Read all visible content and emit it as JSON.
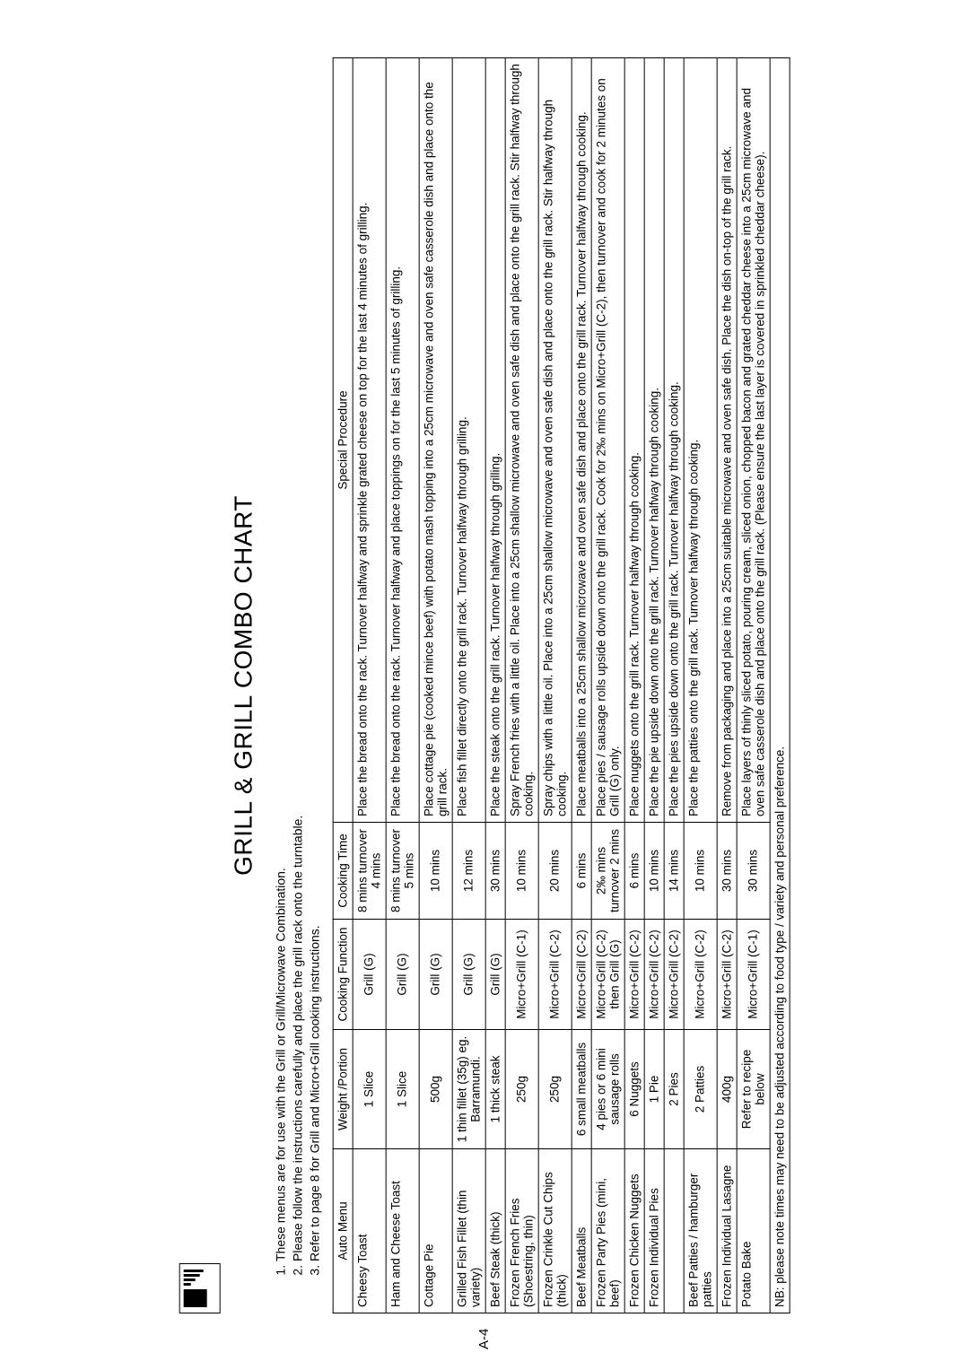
{
  "page_number": "A-4",
  "title": "GRILL & GRILL COMBO CHART",
  "instructions": [
    "These menus are for use with the Grill or Grill/Microwave Combination.",
    "Please follow the instructions carefully and place the grill rack onto the turntable.",
    "Refer to page 8 for Grill and Micro+Grill cooking instructions."
  ],
  "columns": [
    "Auto Menu",
    "Weight /Portion",
    "Cooking Function",
    "Cooking Time",
    "Special Procedure"
  ],
  "rows": [
    {
      "menu": "Cheesy Toast",
      "weight": "1 Slice",
      "function": "Grill (G)",
      "time": "8 mins turnover 4 mins",
      "procedure": "Place the bread onto the rack. Turnover halfway and sprinkle grated cheese on top for the last 4 minutes of grilling."
    },
    {
      "menu": "Ham and Cheese Toast",
      "weight": "1 Slice",
      "function": "Grill (G)",
      "time": "8 mins turnover 5 mins",
      "procedure": "Place the bread onto the rack. Turnover halfway and place toppings on for the last 5 minutes of grilling."
    },
    {
      "menu": "Cottage Pie",
      "weight": "500g",
      "function": "Grill (G)",
      "time": "10 mins",
      "procedure": "Place cottage pie (cooked mince beef) with potato mash topping into a 25cm microwave and oven safe casserole dish and place onto the grill rack."
    },
    {
      "menu": "Grilled Fish Fillet (thin variety)",
      "weight": "1 thin fillet (35g) eg. Barramundi.",
      "function": "Grill (G)",
      "time": "12 mins",
      "procedure": "Place fish fillet directly onto the grill rack. Turnover halfway through grilling."
    },
    {
      "menu": "Beef Steak (thick)",
      "weight": "1 thick steak",
      "function": "Grill (G)",
      "time": "30 mins",
      "procedure": "Place the steak onto the grill rack. Turnover halfway through grilling."
    },
    {
      "menu": "Frozen French Fries (Shoestring, thin)",
      "weight": "250g",
      "function": "Micro+Grill (C-1)",
      "time": "10 mins",
      "procedure": "Spray French fries with a little oil. Place into a 25cm shallow microwave and oven safe dish and place onto the grill rack. Stir halfway through cooking."
    },
    {
      "menu": "Frozen Crinkle Cut Chips (thick)",
      "weight": "250g",
      "function": "Micro+Grill (C-2)",
      "time": "20 mins",
      "procedure": "Spray chips with a little oil. Place into a 25cm shallow microwave and oven safe dish and place onto the grill rack. Stir halfway through cooking."
    },
    {
      "menu": "Beef Meatballs",
      "weight": "6 small meatballs",
      "function": "Micro+Grill (C-2)",
      "time": "6 mins",
      "procedure": "Place meatballs into a 25cm shallow microwave and oven safe dish and place onto the grill rack. Turnover halfway through cooking."
    },
    {
      "menu": "Frozen Party Pies (mini, beef)",
      "weight": "4 pies or 6 mini sausage rolls",
      "function": "Micro+Grill (C-2) then Grill (G)",
      "time": "2‰ mins turnover 2 mins",
      "procedure": "Place pies / sausage rolls upside down onto the grill rack. Cook for 2‰ mins on Micro+Grill (C-2), then turnover and cook for 2 minutes on Grill (G) only."
    },
    {
      "menu": "Frozen Chicken Nuggets",
      "weight": "6 Nuggets",
      "function": "Micro+Grill (C-2)",
      "time": "6 mins",
      "procedure": "Place nuggets onto the grill rack. Turnover halfway through cooking."
    },
    {
      "menu": "Frozen Individual Pies",
      "weight": "1 Pie",
      "function": "Micro+Grill (C-2)",
      "time": "10 mins",
      "procedure": "Place the pie upside down onto the grill rack. Turnover halfway through cooking."
    },
    {
      "menu": "",
      "weight": "2 Pies",
      "function": "Micro+Grill (C-2)",
      "time": "14 mins",
      "procedure": "Place the pies upside down onto the grill rack. Turnover halfway through cooking."
    },
    {
      "menu": "Beef Patties / hamburger patties",
      "weight": "2 Patties",
      "function": "Micro+Grill (C-2)",
      "time": "10 mins",
      "procedure": "Place the patties onto the grill rack. Turnover halfway through cooking."
    },
    {
      "menu": "Frozen Individual Lasagne",
      "weight": "400g",
      "function": "Micro+Grill (C-2)",
      "time": "30 mins",
      "procedure": "Remove from packaging and place into a 25cm suitable microwave and oven safe dish. Place the dish on-top of the grill rack."
    },
    {
      "menu": "Potato Bake",
      "weight": "Refer to recipe below",
      "function": "Micro+Grill (C-1)",
      "time": "30 mins",
      "procedure": "Place layers of thinly sliced potato, pouring cream, sliced onion, chopped bacon and grated cheddar cheese into a 25cm microwave and oven safe casserole dish and place onto the grill rack. (Please ensure the last layer is covered in sprinkled cheddar cheese)."
    }
  ],
  "footnote": "NB: please note times may need to be adjusted according to food type / variety and personal preference.",
  "colors": {
    "background": "#ffffff",
    "text": "#000000",
    "border": "#000000"
  }
}
